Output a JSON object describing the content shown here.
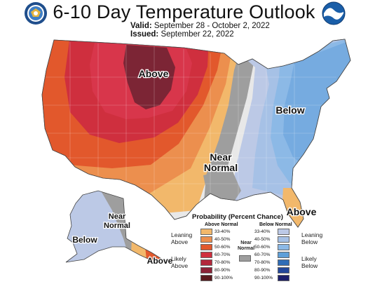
{
  "title": "6-10 Day Temperature Outlook",
  "valid_label": "Valid:",
  "valid_value": "September 28 - October 2, 2022",
  "issued_label": "Issued:",
  "issued_value": "September 22, 2022",
  "logos": {
    "left": "department-of-commerce-seal",
    "right": "noaa-logo"
  },
  "map_labels": {
    "above_west": "Above",
    "below_east": "Below",
    "near_normal_1": "Near",
    "near_normal_2": "Normal",
    "above_florida": "Above",
    "alaska_below": "Below",
    "alaska_near_1": "Near",
    "alaska_near_2": "Normal",
    "alaska_above": "Above"
  },
  "legend": {
    "title": "Probability (Percent Chance)",
    "above_head": "Above Normal",
    "below_head": "Below Normal",
    "near_head_1": "Near",
    "near_head_2": "Normal",
    "leaning_above_1": "Leaning",
    "leaning_above_2": "Above",
    "likely_above_1": "Likely",
    "likely_above_2": "Above",
    "leaning_below_1": "Leaning",
    "leaning_below_2": "Below",
    "likely_below_1": "Likely",
    "likely_below_2": "Below",
    "above_ranges": [
      "33-40%",
      "40-50%",
      "50-60%",
      "60-70%",
      "70-80%",
      "80-90%",
      "90-100%"
    ],
    "below_ranges": [
      "33-40%",
      "40-50%",
      "50-60%",
      "60-70%",
      "70-80%",
      "80-90%",
      "90-100%"
    ],
    "above_colors": [
      "#f2b86b",
      "#ec8f4e",
      "#e2582c",
      "#cf2f3e",
      "#b3283c",
      "#8c2337",
      "#5a1a1e"
    ],
    "below_colors": [
      "#bcc9e6",
      "#a6c1e6",
      "#8cb9e6",
      "#5e9fd8",
      "#2f6db7",
      "#23479a",
      "#1c1f6b"
    ],
    "near_color": "#9e9e9e"
  }
}
